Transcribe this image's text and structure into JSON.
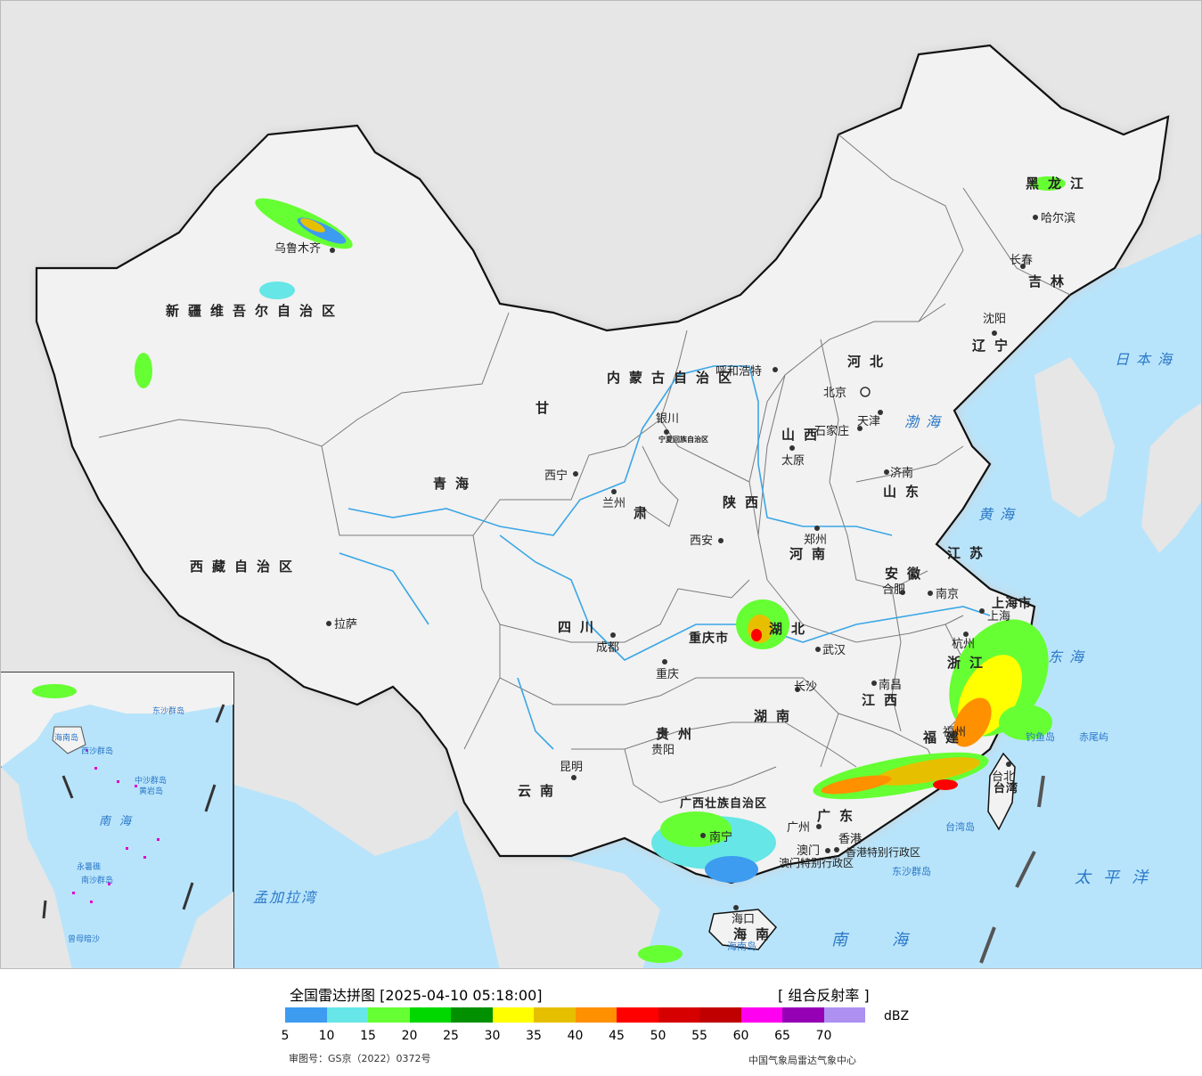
{
  "title": "全国雷达拼图 [2025-04-10 05:18:00]",
  "product": "[ 组合反射率 ]",
  "unit": "dBZ",
  "scale": {
    "colors": [
      "#3d9cf0",
      "#66e6e6",
      "#66ff33",
      "#00d800",
      "#009000",
      "#ffff00",
      "#e6c000",
      "#ff9000",
      "#ff0000",
      "#d60000",
      "#c00000",
      "#ff00f0",
      "#9600b4",
      "#ad90f0"
    ],
    "ticks": [
      "5",
      "10",
      "15",
      "20",
      "25",
      "30",
      "35",
      "40",
      "45",
      "50",
      "55",
      "60",
      "65",
      "70"
    ]
  },
  "approval": "审图号：GS京（2022）0372号",
  "source": "中国气象局雷达气象中心",
  "colors": {
    "sea": "#b8e4fb",
    "land": "#f2f2f2",
    "outside": "#e6e6e6",
    "rivers": "#3aa6e6",
    "city_markers": "#333333"
  },
  "regions": [
    {
      "name": "新疆维吾尔自治区"
    },
    {
      "name": "西藏自治区"
    },
    {
      "name": "青海"
    },
    {
      "name": "甘"
    },
    {
      "name": "肃"
    },
    {
      "name": "四川"
    },
    {
      "name": "云南"
    },
    {
      "name": "贵州"
    },
    {
      "name": "内蒙古自治区"
    },
    {
      "name": "黑龙江"
    },
    {
      "name": "吉林"
    },
    {
      "name": "辽宁"
    },
    {
      "name": "河北"
    },
    {
      "name": "山西"
    },
    {
      "name": "陕西"
    },
    {
      "name": "河南"
    },
    {
      "name": "山东"
    },
    {
      "name": "江苏"
    },
    {
      "name": "安徽"
    },
    {
      "name": "湖北"
    },
    {
      "name": "湖南"
    },
    {
      "name": "江西"
    },
    {
      "name": "浙江"
    },
    {
      "name": "福建"
    },
    {
      "name": "广东"
    },
    {
      "name": "广西壮族自治区"
    },
    {
      "name": "海南"
    },
    {
      "name": "台湾"
    },
    {
      "name": "重庆市"
    },
    {
      "name": "上海市"
    },
    {
      "name": "宁夏回族自治区"
    }
  ],
  "cities": [
    "乌鲁木齐",
    "拉萨",
    "西宁",
    "兰州",
    "银川",
    "呼和浩特",
    "北京",
    "天津",
    "石家庄",
    "太原",
    "济南",
    "郑州",
    "西安",
    "成都",
    "重庆",
    "贵阳",
    "昆明",
    "南宁",
    "广州",
    "长沙",
    "武汉",
    "南昌",
    "合肥",
    "南京",
    "上海",
    "杭州",
    "福州",
    "台北",
    "哈尔滨",
    "长春",
    "沈阳",
    "海口",
    "香港",
    "澳门"
  ],
  "seas": [
    "日本海",
    "渤海",
    "黄海",
    "东海",
    "太平洋",
    "南海",
    "孟加拉湾"
  ],
  "islands": [
    "钓鱼岛",
    "赤尾屿",
    "台湾岛",
    "海南岛",
    "东沙群岛",
    "香港特别行政区",
    "澳门特别行政区"
  ],
  "inset": [
    "南海",
    "东沙群岛",
    "中沙群岛",
    "黄岩岛",
    "永暑礁",
    "南沙群岛",
    "曾母暗沙",
    "西沙群岛",
    "海南岛"
  ]
}
